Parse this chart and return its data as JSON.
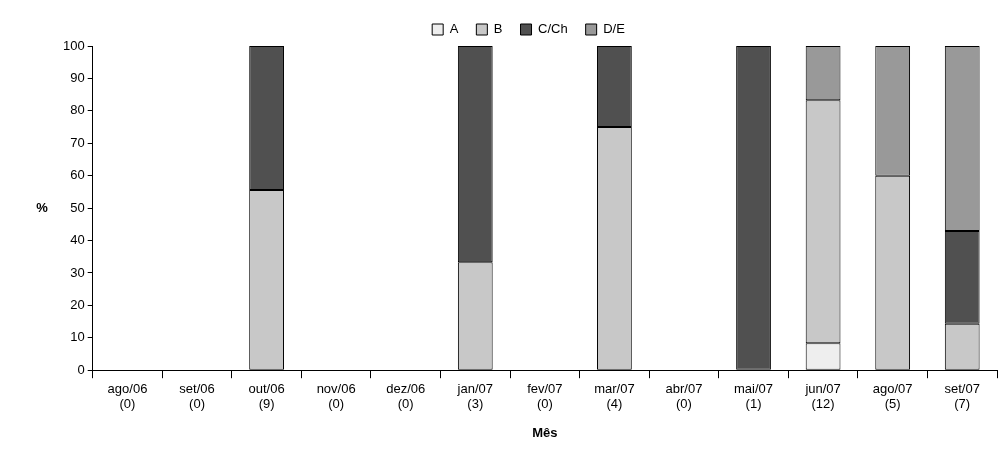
{
  "chart_data": {
    "type": "bar",
    "stacked": true,
    "xlabel": "Mês",
    "ylabel": "%",
    "categories": [
      "ago/06\n(0)",
      "set/06\n(0)",
      "out/06\n(9)",
      "nov/06\n(0)",
      "dez/06\n(0)",
      "jan/07\n(3)",
      "fev/07\n(0)",
      "mar/07\n(4)",
      "abr/07\n(0)",
      "mai/07\n(1)",
      "jun/07\n(12)",
      "ago/07\n(5)",
      "set/07\n(7)"
    ],
    "series": [
      {
        "name": "A",
        "color": "#eeeeee",
        "values": [
          0,
          0,
          0,
          0,
          0,
          0,
          0,
          0,
          0,
          0,
          8.3,
          0,
          0
        ]
      },
      {
        "name": "B",
        "color": "#c8c8c8",
        "values": [
          0,
          0,
          55.6,
          0,
          0,
          33.3,
          0,
          75,
          0,
          0,
          75,
          60,
          14.3
        ]
      },
      {
        "name": "C/Ch",
        "color": "#505050",
        "values": [
          0,
          0,
          44.4,
          0,
          0,
          66.7,
          0,
          25,
          0,
          100,
          0,
          0,
          28.6
        ]
      },
      {
        "name": "D/E",
        "color": "#999999",
        "values": [
          0,
          0,
          0,
          0,
          0,
          0,
          0,
          0,
          0,
          0,
          16.7,
          40,
          57.1
        ]
      }
    ],
    "ylim": [
      0,
      100
    ],
    "yticks": [
      0,
      10,
      20,
      30,
      40,
      50,
      60,
      70,
      80,
      90,
      100
    ],
    "grid": false,
    "legend": "top"
  }
}
